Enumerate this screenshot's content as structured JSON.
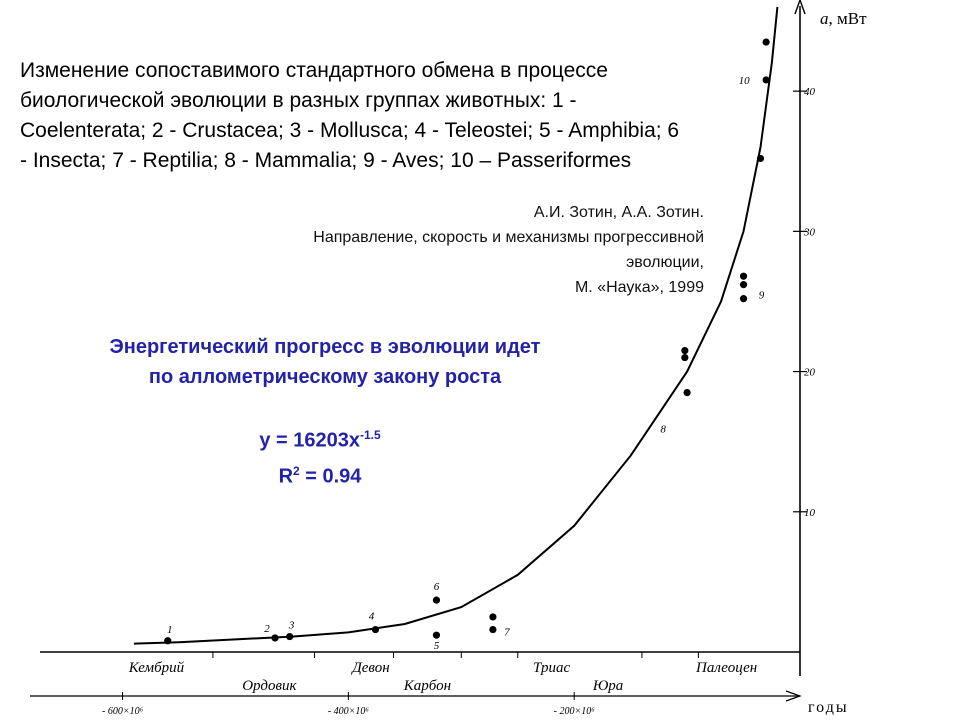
{
  "header": {
    "title": "Изменение сопоставимого стандартного обмена в процессе биологической эволюции в разных группах животных: 1 - Coelenterata; 2 - Crustacea; 3 - Mollusca; 4 - Teleostei; 5 - Amphibia; 6 - Insecta; 7 - Reptilia; 8 - Mammalia; 9 - Aves; 10 – Passeriformes",
    "credit_line1": "А.И. Зотин, А.А. Зотин.",
    "credit_line2": "Направление, скорость и механизмы прогрессивной эволюции,",
    "credit_line3": "М. «Наука», 1999"
  },
  "conclusion": {
    "line1": "Энергетический прогресс в эволюции идет",
    "line2": "по аллометрическому закону роста"
  },
  "equation": {
    "lhs": "y = 16203x",
    "exponent": "-1.5",
    "r2_base": "R",
    "r2_sup": "2",
    "r2_value": " = 0.94"
  },
  "chart_data": {
    "type": "scatter",
    "ylabel": "a, мВт",
    "xlabel": "годы",
    "ylim": [
      0,
      45
    ],
    "y_ticks": [
      10,
      20,
      30,
      40
    ],
    "x_ticks": [
      {
        "value": -600,
        "label": "- 600×10⁶"
      },
      {
        "value": -400,
        "label": "- 400×10⁶"
      },
      {
        "value": -200,
        "label": "- 200×10⁶"
      }
    ],
    "periods_upper": [
      {
        "label": "Кембрий",
        "at": -570
      },
      {
        "label": "Девон",
        "at": -380
      },
      {
        "label": "Триас",
        "at": -220
      },
      {
        "label": "Палеоцен",
        "at": -65
      }
    ],
    "periods_lower": [
      {
        "label": "Ордовик",
        "at": -470
      },
      {
        "label": "Карбон",
        "at": -330
      },
      {
        "label": "Юра",
        "at": -170
      }
    ],
    "points": [
      {
        "x": -560,
        "y": 0.8,
        "label": "1"
      },
      {
        "x": -465,
        "y": 1.0,
        "label": "2"
      },
      {
        "x": -452,
        "y": 1.1,
        "label": "3"
      },
      {
        "x": -376,
        "y": 1.6,
        "label": "4"
      },
      {
        "x": -322,
        "y": 1.2,
        "label": "5"
      },
      {
        "x": -322,
        "y": 3.7,
        "label": "6"
      },
      {
        "x": -272,
        "y": 1.6,
        "label": "7"
      },
      {
        "x": -272,
        "y": 2.5,
        "label": ""
      },
      {
        "x": -100,
        "y": 18.5,
        "label": "8"
      },
      {
        "x": -102,
        "y": 21.0,
        "label": ""
      },
      {
        "x": -102,
        "y": 21.5,
        "label": ""
      },
      {
        "x": -50,
        "y": 25.2,
        "label": "9"
      },
      {
        "x": -50,
        "y": 26.2,
        "label": ""
      },
      {
        "x": -50,
        "y": 26.8,
        "label": ""
      },
      {
        "x": -35,
        "y": 35.2,
        "label": ""
      },
      {
        "x": -30,
        "y": 40.8,
        "label": "10"
      },
      {
        "x": -30,
        "y": 43.5,
        "label": ""
      }
    ],
    "curve": [
      {
        "x": -590,
        "y": 0.6
      },
      {
        "x": -550,
        "y": 0.7
      },
      {
        "x": -500,
        "y": 0.9
      },
      {
        "x": -450,
        "y": 1.1
      },
      {
        "x": -400,
        "y": 1.4
      },
      {
        "x": -350,
        "y": 2.0
      },
      {
        "x": -300,
        "y": 3.2
      },
      {
        "x": -250,
        "y": 5.5
      },
      {
        "x": -200,
        "y": 9.0
      },
      {
        "x": -150,
        "y": 14.0
      },
      {
        "x": -100,
        "y": 20.0
      },
      {
        "x": -70,
        "y": 25.0
      },
      {
        "x": -50,
        "y": 30.0
      },
      {
        "x": -35,
        "y": 36.0
      },
      {
        "x": -25,
        "y": 42.0
      },
      {
        "x": -20,
        "y": 46.0
      }
    ],
    "grid": false
  }
}
